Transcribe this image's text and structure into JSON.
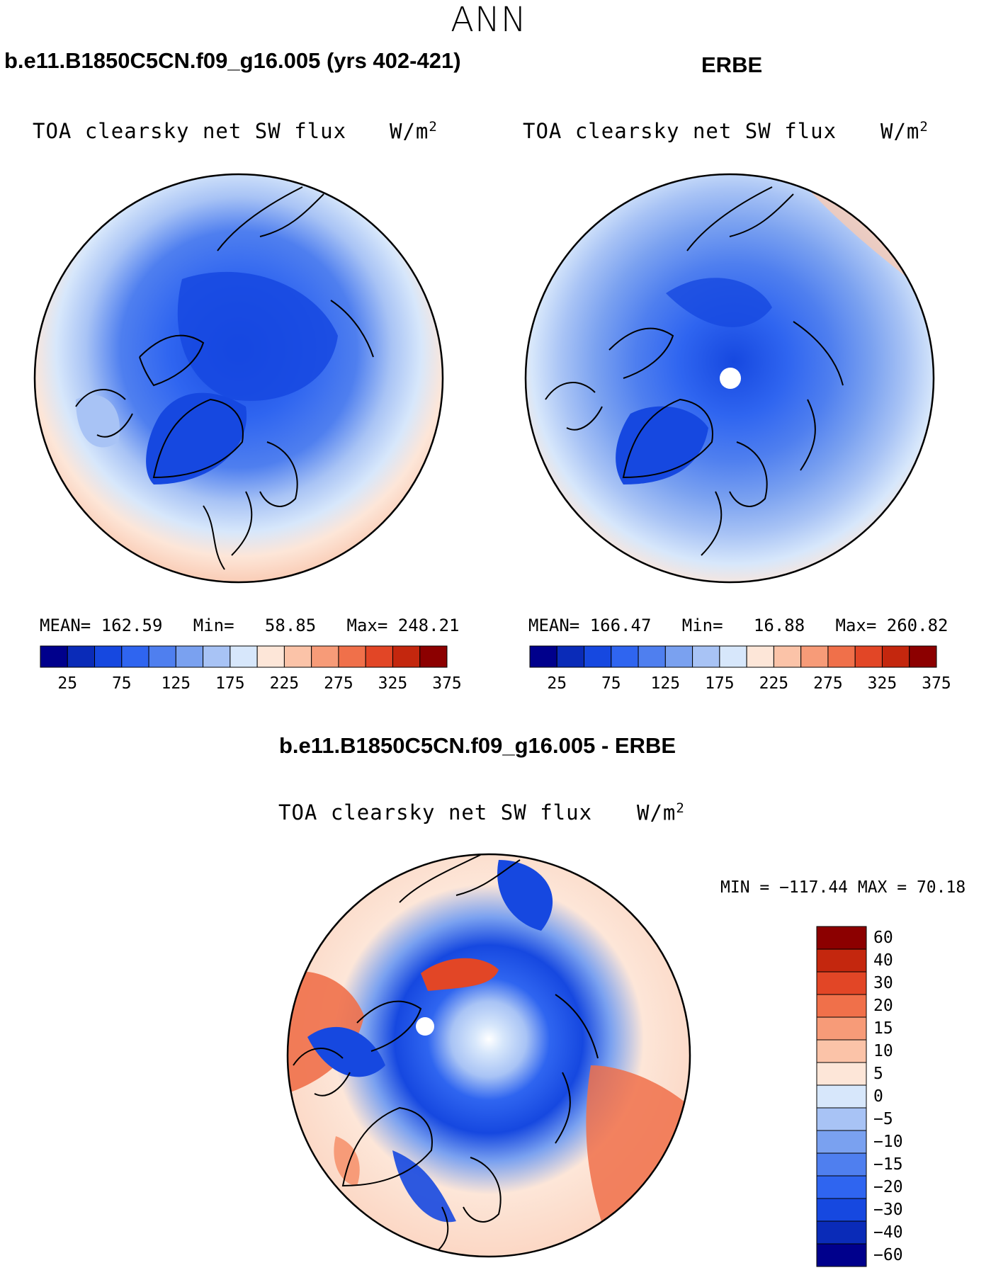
{
  "title": "ANN",
  "panels": [
    {
      "case": "b.e11.B1850C5CN.f09_g16.005 (yrs 402-421)",
      "variable": "TOA clearsky net SW flux",
      "units": "W/m",
      "units_sup": "2",
      "stats": {
        "mean_label": "MEAN=",
        "mean": "162.59",
        "min_label": "Min=",
        "min": "58.85",
        "max_label": "Max=",
        "max": "248.21"
      }
    },
    {
      "case": "ERBE",
      "variable": "TOA clearsky net SW flux",
      "units": "W/m",
      "units_sup": "2",
      "stats": {
        "mean_label": "MEAN=",
        "mean": "166.47",
        "min_label": "Min=",
        "min": "16.88",
        "max_label": "Max=",
        "max": "260.82"
      }
    }
  ],
  "diff_panel": {
    "case": "b.e11.B1850C5CN.f09_g16.005 - ERBE",
    "variable": "TOA clearsky net SW flux",
    "units": "W/m",
    "units_sup": "2",
    "minmax": "MIN = −117.44 MAX =  70.18"
  },
  "colorbar_horizontal": {
    "ticks": [
      "25",
      "75",
      "125",
      "175",
      "225",
      "275",
      "325",
      "375"
    ],
    "colors": [
      "#00008c",
      "#0a2bb8",
      "#1648e0",
      "#2f65f0",
      "#4f7fef",
      "#7aa1f0",
      "#a8c3f5",
      "#d7e7fb",
      "#fde6d8",
      "#fbc3a8",
      "#f79b78",
      "#f0704a",
      "#e24626",
      "#c4270e",
      "#8c0000"
    ]
  },
  "colorbar_vertical": {
    "ticks": [
      "60",
      "40",
      "30",
      "20",
      "15",
      "10",
      "5",
      "0",
      "−5",
      "−10",
      "−15",
      "−20",
      "−30",
      "−40",
      "−60"
    ],
    "colors": [
      "#8c0000",
      "#c4270e",
      "#e24626",
      "#f0704a",
      "#f79b78",
      "#fbc3a8",
      "#fde6d8",
      "#d7e7fb",
      "#a8c3f5",
      "#7aa1f0",
      "#4f7fef",
      "#2f65f0",
      "#1648e0",
      "#0a2bb8",
      "#00008c"
    ]
  },
  "palette": {
    "ocean_light": "#f8cbb4",
    "mid_blue": "#7aa1f0",
    "deep_blue": "#1648e0",
    "warm": "#f0704a"
  }
}
